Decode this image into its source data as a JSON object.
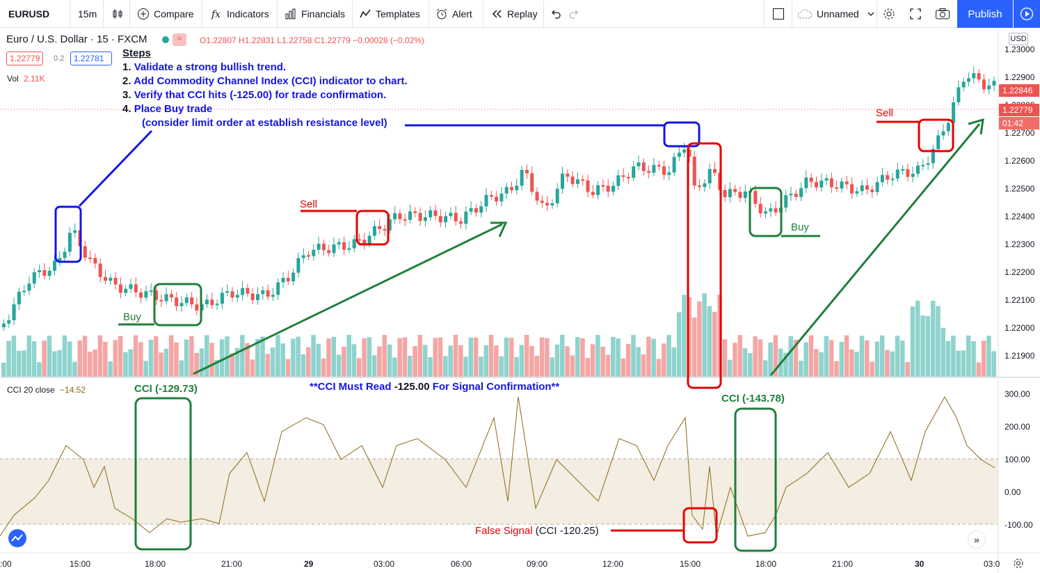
{
  "toolbar": {
    "symbol": "EURUSD",
    "interval": "15m",
    "compare": "Compare",
    "indicators": "Indicators",
    "financials": "Financials",
    "templates": "Templates",
    "alert": "Alert",
    "replay": "Replay",
    "layout_name": "Unnamed",
    "publish": "Publish"
  },
  "legend": {
    "symbol_title": "Euro / U.S. Dollar · 15 · FXCM",
    "ohlc": "O1.22807 H1.22831 L1.22758 C1.22779 −0.00028 (−0.02%)",
    "bid": "1.22779",
    "spread": "0.2",
    "ask": "1.22781",
    "vol_label": "Vol",
    "vol_value": "2.11K",
    "cci_label": "CCI 20 close",
    "cci_value": "−14.52",
    "currency": "USD"
  },
  "steps": {
    "heading": "Steps",
    "items": [
      {
        "num": "1.",
        "text": "Validate a strong bullish trend."
      },
      {
        "num": "2.",
        "text": "Add Commodity Channel Index (CCI) indicator to chart."
      },
      {
        "num": "3.",
        "text": "Verify that CCI hits (-125.00) for trade confirmation."
      },
      {
        "num": "4.",
        "text": "Place Buy trade"
      }
    ],
    "sub": "(consider limit order at establish resistance level)"
  },
  "annotations": {
    "sell": "Sell",
    "buy": "Buy",
    "cci_left": "CCI (-129.73)",
    "cci_right": "CCI (-143.78)",
    "must_read_a": "**CCI Must Read ",
    "must_read_b": "-125.00",
    "must_read_c": " For Signal Confirmation**",
    "false_signal": "False Signal",
    "false_value": "(CCI -120.25)"
  },
  "price_axis": [
    "1.23000",
    "1.22900",
    "1.22800",
    "1.22700",
    "1.22600",
    "1.22500",
    "1.22400",
    "1.22300",
    "1.22200",
    "1.22100",
    "1.22000",
    "1.21900"
  ],
  "price_tags": {
    "high": "1.22846",
    "last": "1.22779",
    "countdown": "01:42"
  },
  "cci_axis": [
    "300.00",
    "200.00",
    "100.00",
    "0.00",
    "-100.00"
  ],
  "time_axis": [
    ":00",
    "15:00",
    "18:00",
    "21:00",
    "29",
    "03:00",
    "06:00",
    "09:00",
    "12:00",
    "15:00",
    "18:00",
    "21:00",
    "30",
    "03:0"
  ],
  "colors": {
    "bull": "#26a69a",
    "bear": "#ef5350",
    "accent": "#2962ff",
    "cci_line": "#8b6914",
    "green_note": "#1e7f3a",
    "blue_note": "#1414e6",
    "red_note": "#e60000"
  }
}
